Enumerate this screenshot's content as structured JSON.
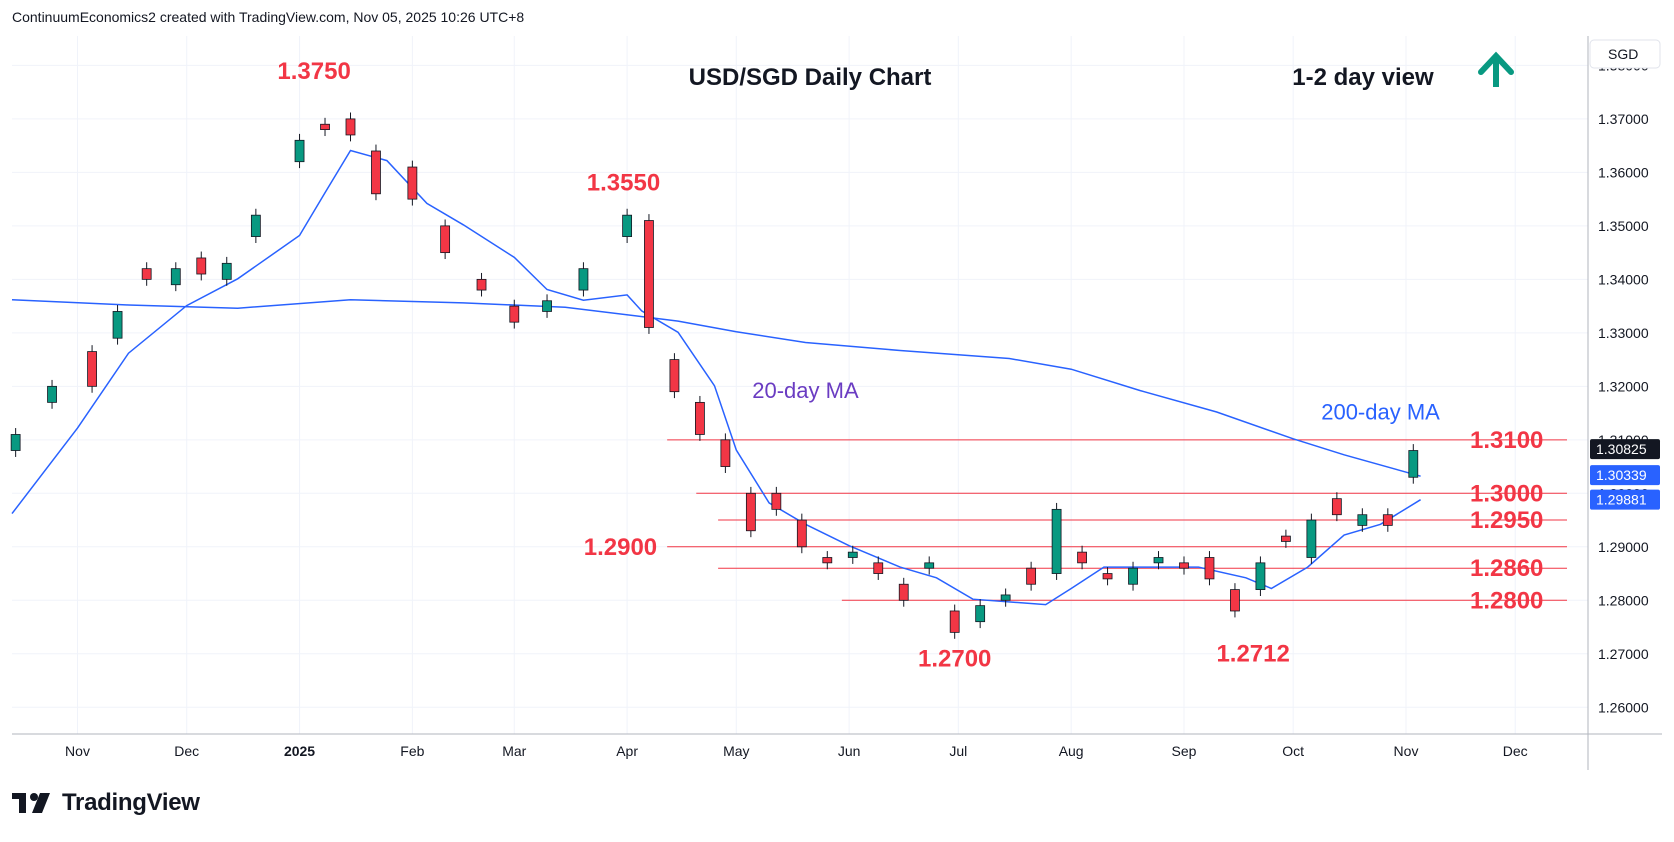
{
  "header": {
    "attribution": "ContinuumEconomics2 created with TradingView.com, Nov 05, 2025 10:26 UTC+8"
  },
  "brand": {
    "name": "TradingView"
  },
  "chart_data": {
    "type": "candlestick",
    "title": "USD/SGD Daily Chart",
    "subtitle": "1-2 day view",
    "view_direction": "up",
    "currency_label": "SGD",
    "ylim": [
      1.255,
      1.3855
    ],
    "y_ticks": [
      "1.38000",
      "1.37000",
      "1.36000",
      "1.35000",
      "1.34000",
      "1.33000",
      "1.32000",
      "1.31000",
      "1.30000",
      "1.29000",
      "1.28000",
      "1.27000",
      "1.26000"
    ],
    "x_ticks": [
      {
        "label": "Nov",
        "x": "2024-11-01",
        "bold": false
      },
      {
        "label": "Dec",
        "x": "2024-12-01",
        "bold": false
      },
      {
        "label": "2025",
        "x": "2025-01-01",
        "bold": true
      },
      {
        "label": "Feb",
        "x": "2025-02-01",
        "bold": false
      },
      {
        "label": "Mar",
        "x": "2025-03-01",
        "bold": false
      },
      {
        "label": "Apr",
        "x": "2025-04-01",
        "bold": false
      },
      {
        "label": "May",
        "x": "2025-05-01",
        "bold": false
      },
      {
        "label": "Jun",
        "x": "2025-06-01",
        "bold": false
      },
      {
        "label": "Jul",
        "x": "2025-07-01",
        "bold": false
      },
      {
        "label": "Aug",
        "x": "2025-08-01",
        "bold": false
      },
      {
        "label": "Sep",
        "x": "2025-09-01",
        "bold": false
      },
      {
        "label": "Oct",
        "x": "2025-10-01",
        "bold": false
      },
      {
        "label": "Nov",
        "x": "2025-11-01",
        "bold": false
      },
      {
        "label": "Dec",
        "x": "2025-12-01",
        "bold": false
      }
    ],
    "x_start": "2024-10-14",
    "x_end": "2025-12-21",
    "grid": true,
    "colors": {
      "up": "#089981",
      "down": "#f23645",
      "ma": "#2962ff",
      "levels": "#f23645",
      "ma_label": "#2962ff",
      "ma20_label": "#6a3cc2",
      "arrow": "#089981"
    },
    "series": [
      {
        "name": "20-day MA",
        "points": [
          [
            "2024-10-14",
            1.2962
          ],
          [
            "2024-11-01",
            1.3122
          ],
          [
            "2024-11-15",
            1.3262
          ],
          [
            "2024-12-01",
            1.3351
          ],
          [
            "2024-12-15",
            1.3401
          ],
          [
            "2025-01-01",
            1.3482
          ],
          [
            "2025-01-08",
            1.3562
          ],
          [
            "2025-01-15",
            1.3641
          ],
          [
            "2025-01-25",
            1.3622
          ],
          [
            "2025-02-05",
            1.3542
          ],
          [
            "2025-02-15",
            1.3502
          ],
          [
            "2025-03-01",
            1.3441
          ],
          [
            "2025-03-10",
            1.3381
          ],
          [
            "2025-03-20",
            1.3361
          ],
          [
            "2025-04-01",
            1.3371
          ],
          [
            "2025-04-05",
            1.3341
          ],
          [
            "2025-04-15",
            1.3301
          ],
          [
            "2025-04-25",
            1.3201
          ],
          [
            "2025-05-01",
            1.3081
          ],
          [
            "2025-05-10",
            1.2982
          ],
          [
            "2025-05-20",
            1.2942
          ],
          [
            "2025-06-01",
            1.2902
          ],
          [
            "2025-06-15",
            1.2862
          ],
          [
            "2025-06-25",
            1.2842
          ],
          [
            "2025-07-05",
            1.2802
          ],
          [
            "2025-07-25",
            1.2792
          ],
          [
            "2025-08-01",
            1.2822
          ],
          [
            "2025-08-10",
            1.2862
          ],
          [
            "2025-08-25",
            1.2862
          ],
          [
            "2025-09-05",
            1.2862
          ],
          [
            "2025-09-18",
            1.2842
          ],
          [
            "2025-09-25",
            1.2822
          ],
          [
            "2025-10-05",
            1.2862
          ],
          [
            "2025-10-15",
            1.2922
          ],
          [
            "2025-10-25",
            1.2942
          ],
          [
            "2025-11-05",
            1.2988
          ]
        ]
      },
      {
        "name": "200-day MA",
        "points": [
          [
            "2024-10-14",
            1.3362
          ],
          [
            "2024-11-15",
            1.3352
          ],
          [
            "2024-12-15",
            1.3346
          ],
          [
            "2025-01-15",
            1.3362
          ],
          [
            "2025-02-15",
            1.3356
          ],
          [
            "2025-03-15",
            1.3348
          ],
          [
            "2025-04-15",
            1.3322
          ],
          [
            "2025-05-01",
            1.3302
          ],
          [
            "2025-05-20",
            1.3282
          ],
          [
            "2025-06-15",
            1.3267
          ],
          [
            "2025-07-15",
            1.3252
          ],
          [
            "2025-08-01",
            1.3232
          ],
          [
            "2025-08-20",
            1.3192
          ],
          [
            "2025-09-10",
            1.3152
          ],
          [
            "2025-10-01",
            1.3102
          ],
          [
            "2025-10-15",
            1.3072
          ],
          [
            "2025-11-05",
            1.3032
          ]
        ]
      }
    ],
    "candles": [
      [
        "2024-10-15",
        1.308,
        1.311
      ],
      [
        "2024-10-25",
        1.317,
        1.32
      ],
      [
        "2024-11-05",
        1.3265,
        1.32
      ],
      [
        "2024-11-12",
        1.329,
        1.334
      ],
      [
        "2024-11-20",
        1.342,
        1.34
      ],
      [
        "2024-11-28",
        1.339,
        1.342
      ],
      [
        "2024-12-05",
        1.344,
        1.341
      ],
      [
        "2024-12-12",
        1.34,
        1.343
      ],
      [
        "2024-12-20",
        1.348,
        1.352
      ],
      [
        "2025-01-01",
        1.362,
        1.366
      ],
      [
        "2025-01-08",
        1.369,
        1.368
      ],
      [
        "2025-01-15",
        1.37,
        1.367
      ],
      [
        "2025-01-22",
        1.364,
        1.356
      ],
      [
        "2025-02-01",
        1.361,
        1.355
      ],
      [
        "2025-02-10",
        1.35,
        1.345
      ],
      [
        "2025-02-20",
        1.34,
        1.338
      ],
      [
        "2025-03-01",
        1.335,
        1.332
      ],
      [
        "2025-03-10",
        1.334,
        1.336
      ],
      [
        "2025-03-20",
        1.338,
        1.342
      ],
      [
        "2025-04-01",
        1.348,
        1.352
      ],
      [
        "2025-04-07",
        1.351,
        1.331
      ],
      [
        "2025-04-14",
        1.325,
        1.319
      ],
      [
        "2025-04-21",
        1.317,
        1.311
      ],
      [
        "2025-04-28",
        1.31,
        1.305
      ],
      [
        "2025-05-05",
        1.3,
        1.293
      ],
      [
        "2025-05-12",
        1.3,
        1.297
      ],
      [
        "2025-05-19",
        1.295,
        1.29
      ],
      [
        "2025-05-26",
        1.288,
        1.287
      ],
      [
        "2025-06-02",
        1.288,
        1.289
      ],
      [
        "2025-06-09",
        1.287,
        1.285
      ],
      [
        "2025-06-16",
        1.283,
        1.28
      ],
      [
        "2025-06-23",
        1.286,
        1.287
      ],
      [
        "2025-06-30",
        1.278,
        1.274
      ],
      [
        "2025-07-07",
        1.276,
        1.279
      ],
      [
        "2025-07-14",
        1.28,
        1.281
      ],
      [
        "2025-07-21",
        1.286,
        1.283
      ],
      [
        "2025-07-28",
        1.285,
        1.297
      ],
      [
        "2025-08-04",
        1.289,
        1.287
      ],
      [
        "2025-08-11",
        1.285,
        1.284
      ],
      [
        "2025-08-18",
        1.283,
        1.286
      ],
      [
        "2025-08-25",
        1.287,
        1.288
      ],
      [
        "2025-09-01",
        1.287,
        1.286
      ],
      [
        "2025-09-08",
        1.288,
        1.284
      ],
      [
        "2025-09-15",
        1.282,
        1.278
      ],
      [
        "2025-09-22",
        1.282,
        1.287
      ],
      [
        "2025-09-29",
        1.292,
        1.291
      ],
      [
        "2025-10-06",
        1.288,
        1.295
      ],
      [
        "2025-10-13",
        1.299,
        1.296
      ],
      [
        "2025-10-20",
        1.294,
        1.296
      ],
      [
        "2025-10-27",
        1.296,
        1.294
      ],
      [
        "2025-11-03",
        1.303,
        1.308
      ]
    ],
    "levels": [
      {
        "label": "1.3100",
        "value": 1.31,
        "x_from": "2025-04-12"
      },
      {
        "label": "1.3000",
        "value": 1.3,
        "x_from": "2025-04-20"
      },
      {
        "label": "1.2950",
        "value": 1.295,
        "x_from": "2025-04-26"
      },
      {
        "label": "1.2900",
        "value": 1.29,
        "x_from": "2025-04-12",
        "label_side": "left"
      },
      {
        "label": "1.2860",
        "value": 1.286,
        "x_from": "2025-04-26"
      },
      {
        "label": "1.2800",
        "value": 1.28,
        "x_from": "2025-05-30"
      }
    ],
    "annotations": [
      {
        "text": "1.3750",
        "x": "2025-01-05",
        "y": 1.3775
      },
      {
        "text": "1.3550",
        "x": "2025-03-31",
        "y": 1.3566
      },
      {
        "text": "1.2700",
        "x": "2025-06-30",
        "y": 1.2676
      },
      {
        "text": "1.2712",
        "x": "2025-09-20",
        "y": 1.2686
      },
      {
        "text": "20-day MA",
        "ma": 0,
        "x": "2025-05-20",
        "y": 1.3178
      },
      {
        "text": "200-day MA",
        "ma": 1,
        "x": "2025-10-25",
        "y": 1.3138
      }
    ],
    "price_labels": [
      {
        "value": "1.30825",
        "y": 1.30825,
        "color": "#131722"
      },
      {
        "value": "1.30339",
        "y": 1.30339,
        "color": "#2962ff"
      },
      {
        "value": "1.29881",
        "y": 1.29881,
        "color": "#2962ff"
      }
    ]
  }
}
